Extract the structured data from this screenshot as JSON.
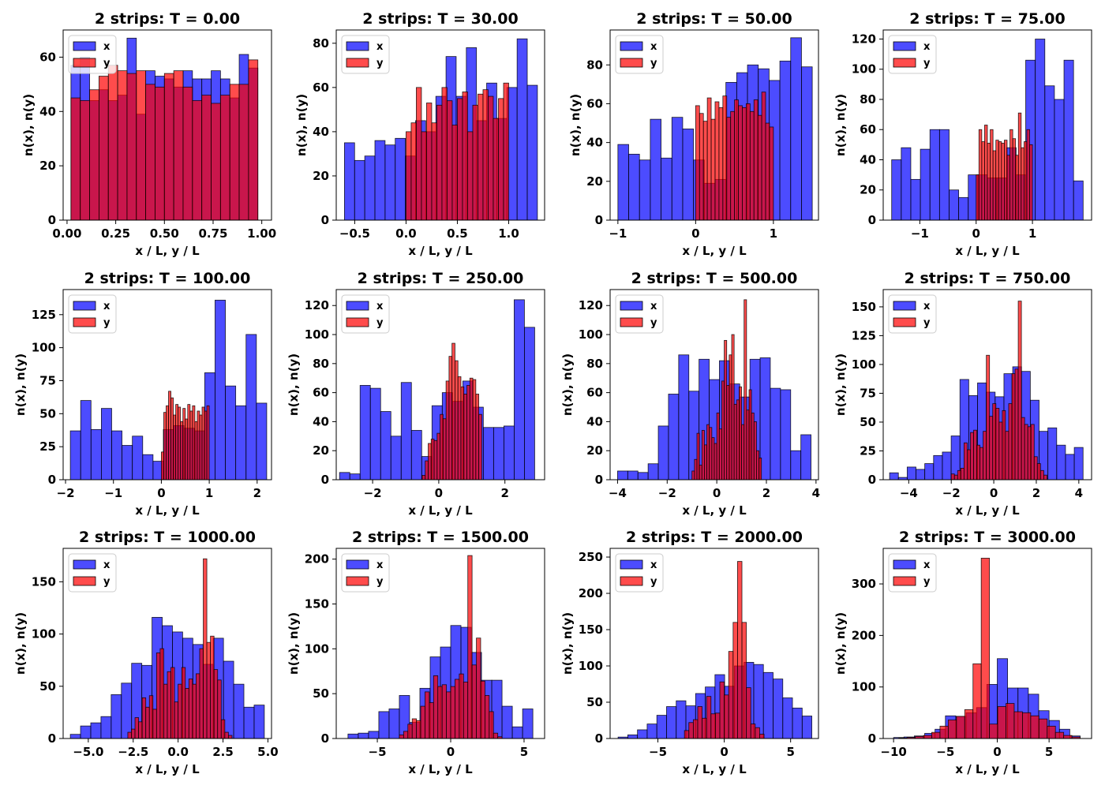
{
  "figure": {
    "xlabel": "x / L, y / L",
    "ylabel": "n(x), n(y)"
  },
  "colors": {
    "x": "#0000ff",
    "y": "#ff0000"
  },
  "chart_data": [
    {
      "type": "bar",
      "title": "2 strips: T = 0.00",
      "xlabel": "x / L, y / L",
      "ylabel": "n(x), n(y)",
      "xlim": [
        -0.02,
        1.05
      ],
      "ylim": [
        0,
        70
      ],
      "xticks": [
        0,
        0.25,
        0.5,
        0.75,
        1.0
      ],
      "xticklabels": [
        "0.00",
        "0.25",
        "0.50",
        "0.75",
        "1.00"
      ],
      "yticks": [
        0,
        20,
        40,
        60
      ],
      "yticklabels": [
        "0",
        "20",
        "40",
        "60"
      ],
      "legend": [
        "x",
        "y"
      ],
      "series": [
        {
          "name": "x",
          "range": [
            0.02,
            0.98
          ],
          "counts": [
            57,
            60,
            44,
            48,
            44,
            46,
            67,
            39,
            55,
            53,
            52,
            49,
            55,
            52,
            52,
            55,
            52,
            45,
            61,
            56
          ]
        },
        {
          "name": "y",
          "range": [
            0.02,
            0.98
          ],
          "counts": [
            45,
            44,
            48,
            53,
            57,
            55,
            54,
            55,
            50,
            49,
            54,
            55,
            49,
            44,
            46,
            43,
            46,
            50,
            50,
            59
          ]
        }
      ]
    },
    {
      "type": "bar",
      "title": "2 strips: T = 30.00",
      "xlabel": "x / L, y / L",
      "ylabel": "n(x), n(y)",
      "xlim": [
        -0.68,
        1.35
      ],
      "ylim": [
        0,
        86
      ],
      "xticks": [
        -0.5,
        0,
        0.5,
        1.0
      ],
      "xticklabels": [
        "−0.5",
        "0.0",
        "0.5",
        "1.0"
      ],
      "yticks": [
        0,
        20,
        40,
        60,
        80
      ],
      "yticklabels": [
        "0",
        "20",
        "40",
        "60",
        "80"
      ],
      "legend": [
        "x",
        "y"
      ],
      "series": [
        {
          "name": "x",
          "range": [
            -0.6,
            1.28
          ],
          "counts": [
            35,
            27,
            29,
            36,
            34,
            37,
            29,
            45,
            40,
            56,
            74,
            56,
            78,
            45,
            62,
            46,
            60,
            82,
            61
          ]
        },
        {
          "name": "y",
          "range": [
            0.0,
            1.0
          ],
          "counts": [
            40,
            44,
            60,
            40,
            53,
            44,
            52,
            60,
            54,
            43,
            55,
            58,
            40,
            52,
            57,
            59,
            56,
            46,
            55,
            62
          ]
        }
      ]
    },
    {
      "type": "bar",
      "title": "2 strips: T = 50.00",
      "xlabel": "x / L, y / L",
      "ylabel": "n(x), n(y)",
      "xlim": [
        -1.1,
        1.58
      ],
      "ylim": [
        0,
        98
      ],
      "xticks": [
        -1,
        0,
        1
      ],
      "xticklabels": [
        "−1",
        "0",
        "1"
      ],
      "yticks": [
        0,
        20,
        40,
        60,
        80
      ],
      "yticklabels": [
        "0",
        "20",
        "40",
        "60",
        "80"
      ],
      "legend": [
        "x",
        "y"
      ],
      "series": [
        {
          "name": "x",
          "range": [
            -1.0,
            1.5
          ],
          "counts": [
            39,
            34,
            31,
            52,
            32,
            53,
            47,
            31,
            19,
            21,
            71,
            76,
            80,
            78,
            72,
            82,
            94,
            79
          ]
        },
        {
          "name": "y",
          "range": [
            0.0,
            1.0
          ],
          "counts": [
            59,
            55,
            51,
            63,
            52,
            61,
            58,
            64,
            53,
            56,
            62,
            59,
            58,
            60,
            56,
            62,
            54,
            66,
            50,
            48
          ]
        }
      ]
    },
    {
      "type": "bar",
      "title": "2 strips: T = 75.00",
      "xlabel": "x / L, y / L",
      "ylabel": "n(x), n(y)",
      "xlim": [
        -1.65,
        2.05
      ],
      "ylim": [
        0,
        126
      ],
      "xticks": [
        -1,
        0,
        1
      ],
      "xticklabels": [
        "−1",
        "0",
        "1"
      ],
      "yticks": [
        0,
        20,
        40,
        60,
        80,
        100,
        120
      ],
      "yticklabels": [
        "0",
        "20",
        "40",
        "60",
        "80",
        "100",
        "120"
      ],
      "legend": [
        "x",
        "y"
      ],
      "series": [
        {
          "name": "x",
          "range": [
            -1.5,
            1.9
          ],
          "counts": [
            40,
            48,
            27,
            47,
            60,
            60,
            20,
            15,
            30,
            30,
            28,
            28,
            48,
            30,
            106,
            120,
            89,
            80,
            106,
            26
          ]
        },
        {
          "name": "y",
          "range": [
            0.0,
            1.0
          ],
          "counts": [
            30,
            60,
            52,
            63,
            51,
            60,
            46,
            53,
            52,
            51,
            53,
            43,
            60,
            54,
            43,
            71,
            48,
            52,
            60,
            50
          ]
        }
      ]
    },
    {
      "type": "bar",
      "title": "2 strips: T = 100.00",
      "xlabel": "x / L, y / L",
      "ylabel": "n(x), n(y)",
      "xlim": [
        -2.05,
        2.3
      ],
      "ylim": [
        0,
        144
      ],
      "xticks": [
        -2,
        -1,
        0,
        1,
        2
      ],
      "xticklabels": [
        "−2",
        "−1",
        "0",
        "1",
        "2"
      ],
      "yticks": [
        0,
        25,
        50,
        75,
        100,
        125
      ],
      "yticklabels": [
        "0",
        "25",
        "50",
        "75",
        "100",
        "125"
      ],
      "legend": [
        "x",
        "y"
      ],
      "series": [
        {
          "name": "x",
          "range": [
            -1.9,
            2.2
          ],
          "counts": [
            37,
            60,
            38,
            54,
            37,
            26,
            33,
            19,
            14,
            38,
            41,
            39,
            37,
            81,
            136,
            71,
            56,
            110,
            58
          ]
        },
        {
          "name": "y",
          "range": [
            0.0,
            1.0
          ],
          "counts": [
            21,
            51,
            56,
            67,
            62,
            49,
            57,
            55,
            44,
            54,
            46,
            57,
            52,
            56,
            44,
            52,
            49,
            55,
            52,
            56
          ]
        }
      ]
    },
    {
      "type": "bar",
      "title": "2 strips: T = 250.00",
      "xlabel": "x / L, y / L",
      "ylabel": "n(x), n(y)",
      "xlim": [
        -3.1,
        3.2
      ],
      "ylim": [
        0,
        131
      ],
      "xticks": [
        -2,
        0,
        2
      ],
      "xticklabels": [
        "−2",
        "0",
        "2"
      ],
      "yticks": [
        0,
        20,
        40,
        60,
        80,
        100,
        120
      ],
      "yticklabels": [
        "0",
        "20",
        "40",
        "60",
        "80",
        "100",
        "120"
      ],
      "legend": [
        "x",
        "y"
      ],
      "series": [
        {
          "name": "x",
          "range": [
            -3.0,
            2.9
          ],
          "counts": [
            5,
            4,
            65,
            63,
            47,
            30,
            67,
            34,
            16,
            51,
            60,
            54,
            68,
            50,
            36,
            36,
            37,
            124,
            105
          ]
        },
        {
          "name": "y",
          "range": [
            -0.5,
            1.3
          ],
          "counts": [
            3,
            13,
            25,
            28,
            27,
            32,
            45,
            42,
            68,
            85,
            94,
            82,
            71,
            64,
            59,
            65,
            70,
            69,
            59,
            45
          ]
        }
      ]
    },
    {
      "type": "bar",
      "title": "2 strips: T = 500.00",
      "xlabel": "x / L, y / L",
      "ylabel": "n(x), n(y)",
      "xlim": [
        -4.3,
        4.1
      ],
      "ylim": [
        0,
        131
      ],
      "xticks": [
        -4,
        -2,
        0,
        2,
        4
      ],
      "xticklabels": [
        "−4",
        "−2",
        "0",
        "2",
        "4"
      ],
      "yticks": [
        0,
        20,
        40,
        60,
        80,
        100,
        120
      ],
      "yticklabels": [
        "0",
        "20",
        "40",
        "60",
        "80",
        "100",
        "120"
      ],
      "legend": [
        "x",
        "y"
      ],
      "series": [
        {
          "name": "x",
          "range": [
            -4.0,
            3.8
          ],
          "counts": [
            6,
            6,
            5,
            11,
            37,
            59,
            86,
            61,
            83,
            69,
            82,
            66,
            57,
            83,
            84,
            63,
            62,
            20,
            31
          ]
        },
        {
          "name": "y",
          "range": [
            -1.0,
            1.8
          ],
          "counts": [
            6,
            14,
            32,
            10,
            34,
            24,
            38,
            36,
            29,
            25,
            46,
            35,
            68,
            96,
            65,
            86,
            100,
            52,
            55,
            64,
            38,
            124,
            48,
            62,
            46,
            40,
            20,
            15
          ]
        }
      ]
    },
    {
      "type": "bar",
      "title": "2 strips: T = 750.00",
      "xlabel": "x / L, y / L",
      "ylabel": "n(x), n(y)",
      "xlim": [
        -5.2,
        4.6
      ],
      "ylim": [
        0,
        165
      ],
      "xticks": [
        -4,
        -2,
        0,
        2,
        4
      ],
      "xticklabels": [
        "−4",
        "−2",
        "0",
        "2",
        "4"
      ],
      "yticks": [
        0,
        25,
        50,
        75,
        100,
        125,
        150
      ],
      "yticklabels": [
        "0",
        "25",
        "50",
        "75",
        "100",
        "125",
        "150"
      ],
      "legend": [
        "x",
        "y"
      ],
      "series": [
        {
          "name": "x",
          "range": [
            -4.9,
            4.2
          ],
          "counts": [
            6,
            2,
            11,
            9,
            14,
            21,
            24,
            38,
            87,
            73,
            84,
            76,
            72,
            92,
            98,
            94,
            69,
            42,
            45,
            30,
            22,
            28
          ]
        },
        {
          "name": "y",
          "range": [
            -2.0,
            2.5
          ],
          "counts": [
            5,
            4,
            8,
            10,
            32,
            26,
            41,
            43,
            30,
            28,
            42,
            108,
            55,
            66,
            62,
            50,
            60,
            42,
            66,
            92,
            96,
            155,
            54,
            48,
            46,
            48,
            20,
            14,
            8,
            4
          ]
        }
      ]
    },
    {
      "type": "bar",
      "title": "2 strips: T = 1000.00",
      "xlabel": "x / L, y / L",
      "ylabel": "n(x), n(y)",
      "xlim": [
        -6.4,
        5.2
      ],
      "ylim": [
        0,
        182
      ],
      "xticks": [
        -5,
        -2.5,
        0,
        2.5,
        5
      ],
      "xticklabels": [
        "−5.0",
        "−2.5",
        "0.0",
        "2.5",
        "5.0"
      ],
      "yticks": [
        0,
        50,
        100,
        150
      ],
      "yticklabels": [
        "0",
        "50",
        "100",
        "150"
      ],
      "legend": [
        "x",
        "y"
      ],
      "series": [
        {
          "name": "x",
          "range": [
            -6.0,
            4.8
          ],
          "counts": [
            4,
            12,
            15,
            21,
            42,
            53,
            72,
            70,
            116,
            108,
            102,
            96,
            90,
            71,
            96,
            74,
            52,
            30,
            32
          ]
        },
        {
          "name": "y",
          "range": [
            -2.8,
            3.0
          ],
          "counts": [
            6,
            9,
            20,
            16,
            39,
            30,
            41,
            28,
            82,
            86,
            52,
            64,
            68,
            35,
            52,
            68,
            48,
            57,
            52,
            62,
            86,
            172,
            92,
            98,
            66,
            56,
            18,
            6,
            3
          ]
        }
      ]
    },
    {
      "type": "bar",
      "title": "2 strips: T = 1500.00",
      "xlabel": "x / L, y / L",
      "ylabel": "n(x), n(y)",
      "xlim": [
        -7.8,
        6.4
      ],
      "ylim": [
        0,
        212
      ],
      "xticks": [
        -5,
        0,
        5
      ],
      "xticklabels": [
        "−5",
        "0",
        "5"
      ],
      "yticks": [
        0,
        50,
        100,
        150,
        200
      ],
      "yticklabels": [
        "0",
        "50",
        "100",
        "150",
        "200"
      ],
      "legend": [
        "x",
        "y"
      ],
      "series": [
        {
          "name": "x",
          "range": [
            -7.0,
            5.6
          ],
          "counts": [
            5,
            6,
            8,
            30,
            33,
            48,
            18,
            56,
            91,
            102,
            126,
            124,
            96,
            65,
            65,
            36,
            13,
            33
          ]
        },
        {
          "name": "y",
          "range": [
            -3.5,
            3.5
          ],
          "counts": [
            4,
            8,
            16,
            22,
            20,
            36,
            52,
            40,
            70,
            58,
            60,
            52,
            58,
            66,
            72,
            63,
            204,
            82,
            112,
            64,
            48,
            30,
            6,
            2
          ]
        }
      ]
    },
    {
      "type": "bar",
      "title": "2 strips: T = 2000.00",
      "xlabel": "x / L, y / L",
      "ylabel": "n(x), n(y)",
      "xlim": [
        -8.6,
        7.1
      ],
      "ylim": [
        0,
        262
      ],
      "xticks": [
        -5,
        0,
        5
      ],
      "xticklabels": [
        "−5",
        "0",
        "5"
      ],
      "yticks": [
        0,
        50,
        100,
        150,
        200,
        250
      ],
      "yticklabels": [
        "0",
        "50",
        "100",
        "150",
        "200",
        "250"
      ],
      "legend": [
        "x",
        "y"
      ],
      "series": [
        {
          "name": "x",
          "range": [
            -8.0,
            6.6
          ],
          "counts": [
            2,
            5,
            12,
            20,
            32,
            44,
            52,
            45,
            62,
            71,
            88,
            72,
            100,
            105,
            102,
            91,
            82,
            56,
            42,
            31
          ]
        },
        {
          "name": "y",
          "range": [
            -3.0,
            3.0
          ],
          "counts": [
            11,
            22,
            26,
            44,
            28,
            58,
            34,
            35,
            78,
            60,
            120,
            160,
            244,
            160,
            70,
            20,
            15,
            6
          ]
        }
      ]
    },
    {
      "type": "bar",
      "title": "2 strips: T = 3000.00",
      "xlabel": "x / L, y / L",
      "ylabel": "n(x), n(y)",
      "xlim": [
        -11,
        9.1
      ],
      "ylim": [
        0,
        369
      ],
      "xticks": [
        -10,
        -5,
        0,
        5
      ],
      "xticklabels": [
        "−10",
        "−5",
        "0",
        "5"
      ],
      "yticks": [
        0,
        100,
        200,
        300
      ],
      "yticklabels": [
        "0",
        "100",
        "200",
        "300"
      ],
      "legend": [
        "x",
        "y"
      ],
      "series": [
        {
          "name": "x",
          "range": [
            -10.0,
            8.0
          ],
          "counts": [
            2,
            3,
            5,
            10,
            18,
            44,
            43,
            50,
            60,
            105,
            155,
            98,
            98,
            86,
            54,
            35,
            18,
            5
          ]
        },
        {
          "name": "y",
          "range": [
            -9.5,
            8.0
          ],
          "counts": [
            1,
            2,
            4,
            6,
            12,
            24,
            36,
            43,
            56,
            145,
            350,
            28,
            62,
            68,
            52,
            50,
            44,
            38,
            24,
            12,
            6,
            3
          ]
        }
      ]
    }
  ]
}
